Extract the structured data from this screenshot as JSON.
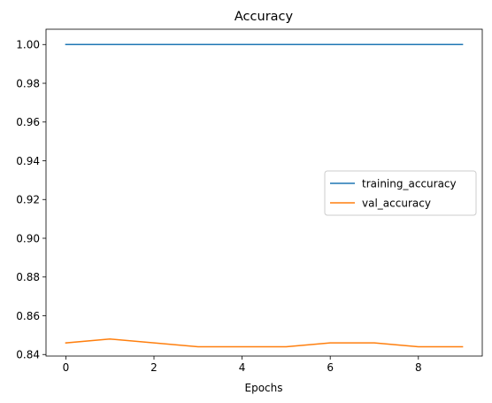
{
  "chart_data": {
    "type": "line",
    "title": "Accuracy",
    "xlabel": "Epochs",
    "ylabel": "",
    "x": [
      0,
      1,
      2,
      3,
      4,
      5,
      6,
      7,
      8,
      9
    ],
    "xlim": [
      -0.45,
      9.45
    ],
    "ylim": [
      0.8392,
      1.0079
    ],
    "xticks": [
      0,
      2,
      4,
      6,
      8
    ],
    "xtick_labels": [
      "0",
      "2",
      "4",
      "6",
      "8"
    ],
    "yticks": [
      0.84,
      0.86,
      0.88,
      0.9,
      0.92,
      0.94,
      0.96,
      0.98,
      1.0
    ],
    "ytick_labels": [
      "0.84",
      "0.86",
      "0.88",
      "0.90",
      "0.92",
      "0.94",
      "0.96",
      "0.98",
      "1.00"
    ],
    "grid": false,
    "legend_position": "center-right",
    "series": [
      {
        "name": "training_accuracy",
        "color": "#1f77b4",
        "values": [
          1.0,
          1.0,
          1.0,
          1.0,
          1.0,
          1.0,
          1.0,
          1.0,
          1.0,
          1.0
        ]
      },
      {
        "name": "val_accuracy",
        "color": "#ff7f0e",
        "values": [
          0.846,
          0.848,
          0.846,
          0.844,
          0.844,
          0.844,
          0.846,
          0.846,
          0.844,
          0.844
        ]
      }
    ]
  }
}
